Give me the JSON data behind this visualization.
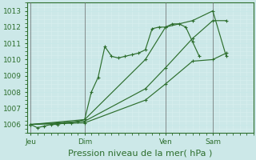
{
  "title": "Pression niveau de la mer( hPa )",
  "bg_color": "#cce8e8",
  "plot_bg_color": "#cce8e8",
  "grid_color": "#e8f4f4",
  "line_color": "#2d6e2d",
  "marker_color": "#2d6e2d",
  "ylim": [
    1005.5,
    1013.5
  ],
  "yticks": [
    1006,
    1007,
    1008,
    1009,
    1010,
    1011,
    1012,
    1013
  ],
  "xtick_labels": [
    "Jeu",
    "Dim",
    "Ven",
    "Sam"
  ],
  "xtick_positions": [
    0,
    8,
    20,
    27
  ],
  "vlines": [
    0,
    8,
    20,
    27
  ],
  "xlim": [
    -0.5,
    33
  ],
  "series1_x": [
    0,
    1,
    2,
    3,
    4,
    5,
    6,
    7,
    8,
    9,
    10,
    11,
    12,
    13,
    14,
    15,
    16,
    17,
    18,
    19,
    20,
    21,
    22,
    23,
    24,
    25
  ],
  "series1_y": [
    1006.0,
    1005.8,
    1005.9,
    1006.0,
    1006.0,
    1006.1,
    1006.1,
    1006.2,
    1006.3,
    1008.0,
    1008.9,
    1010.8,
    1010.2,
    1010.1,
    1010.2,
    1010.3,
    1010.4,
    1010.6,
    1011.9,
    1012.0,
    1012.0,
    1012.2,
    1012.2,
    1012.0,
    1011.1,
    1010.2
  ],
  "series2_x": [
    0,
    8,
    17,
    20,
    24,
    27,
    29
  ],
  "series2_y": [
    1006.0,
    1006.3,
    1010.0,
    1012.0,
    1012.4,
    1013.0,
    1010.2
  ],
  "series3_x": [
    0,
    8,
    17,
    20,
    24,
    27,
    29
  ],
  "series3_y": [
    1006.0,
    1006.2,
    1008.2,
    1009.5,
    1011.3,
    1012.4,
    1012.4
  ],
  "series4_x": [
    0,
    8,
    17,
    20,
    24,
    27,
    29
  ],
  "series4_y": [
    1006.0,
    1006.1,
    1007.5,
    1008.5,
    1009.9,
    1010.0,
    1010.4
  ]
}
